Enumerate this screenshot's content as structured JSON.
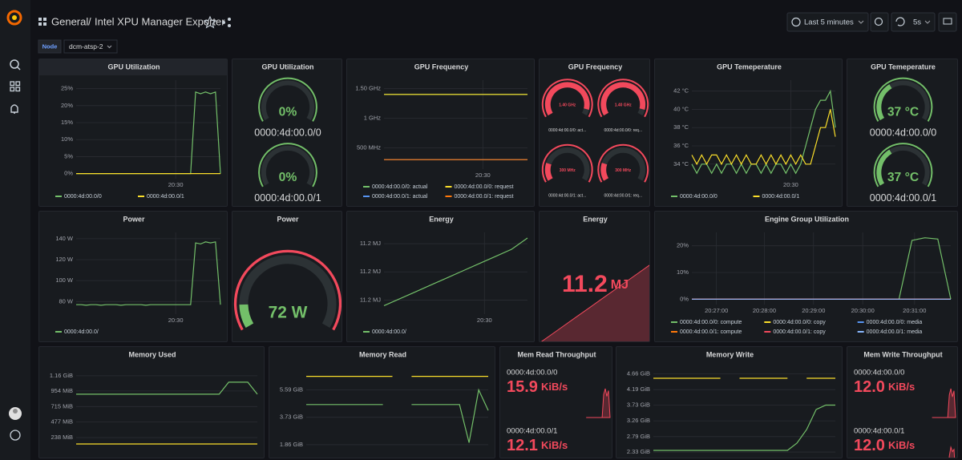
{
  "header": {
    "folder": "General",
    "dashboard": "Intel XPU Manager Exporter",
    "time_range": "Last 5 minutes",
    "refresh": "5s"
  },
  "variable": {
    "label": "Node",
    "value": "dcm-atsp-2"
  },
  "panels": [
    {
      "kind": "graph",
      "title": "GPU Utilization",
      "ylim": [
        -1.5,
        27.5
      ],
      "yticks": [
        {
          "value": 0,
          "label": "0%"
        },
        {
          "value": 5,
          "label": "5%"
        },
        {
          "value": 10,
          "label": "10%"
        },
        {
          "value": 15,
          "label": "15%"
        },
        {
          "value": 20,
          "label": "20%"
        },
        {
          "value": 25,
          "label": "25%"
        }
      ],
      "xticks": [
        {
          "value": 20,
          "label": "20:30"
        }
      ],
      "series": [
        {
          "name": "0000:4d:00.0/0",
          "color": "#73bf69",
          "values": [
            0,
            0,
            0,
            0,
            0,
            0,
            0,
            0,
            0,
            0,
            0,
            0,
            0,
            0,
            0,
            0,
            0,
            0,
            0,
            0,
            0,
            0,
            0,
            0,
            24,
            23.5,
            24,
            23.5,
            24,
            0
          ]
        },
        {
          "name": "0000:4d:00.0/1",
          "color": "#fade2a",
          "values": [
            0,
            0,
            0,
            0,
            0,
            0,
            0,
            0,
            0,
            0,
            0,
            0,
            0,
            0,
            0,
            0,
            0,
            0,
            0,
            0,
            0,
            0,
            0,
            0,
            0,
            0,
            0,
            0,
            0,
            0
          ]
        }
      ]
    },
    {
      "kind": "gauge",
      "title": "GPU Utilization",
      "min": 0,
      "max": 100,
      "color": "#73bf69",
      "threshold_color": "#73bf69",
      "items": [
        {
          "name": "0000:4d:00.0/0",
          "value": 0,
          "label": "0%"
        },
        {
          "name": "0000:4d:00.0/1",
          "value": 0,
          "label": "0%"
        }
      ]
    },
    {
      "kind": "graph",
      "title": "GPU Frequency",
      "ylim": [
        140,
        1640
      ],
      "yticks": [
        {
          "value": 500,
          "label": "500 MHz"
        },
        {
          "value": 1000,
          "label": "1 GHz"
        },
        {
          "value": 1500,
          "label": "1.50 GHz"
        }
      ],
      "xticks": [
        {
          "value": 6.2,
          "label": "20:30"
        }
      ],
      "series": [
        {
          "name": "0000:4d:00.0/0: actual",
          "color": "#73bf69",
          "values": [
            1400,
            1400,
            1400,
            1400,
            1400,
            1400,
            1400,
            1400,
            1400,
            1400
          ]
        },
        {
          "name": "0000:4d:00.0/0: request",
          "color": "#fade2a",
          "values": [
            1400,
            1400,
            1400,
            1400,
            1400,
            1400,
            1400,
            1400,
            1400,
            1400
          ]
        },
        {
          "name": "0000:4d:00.0/1: actual",
          "color": "#5794f2",
          "values": [
            300,
            300,
            300,
            300,
            300,
            300,
            300,
            300,
            300,
            300
          ]
        },
        {
          "name": "0000:4d:00.0/1: request",
          "color": "#ff780a",
          "values": [
            300,
            300,
            300,
            300,
            300,
            300,
            300,
            300,
            300,
            300
          ]
        }
      ]
    },
    {
      "kind": "gauge",
      "title": "GPU Frequency",
      "min": 0,
      "max": 1500,
      "color": "#f2495c",
      "threshold_color": "#f2495c",
      "items": [
        {
          "name": "0000:4d:00.0/0: act...",
          "value": 1400,
          "label": "1.40 GHz"
        },
        {
          "name": "0000:4d:00.0/0: req...",
          "value": 1400,
          "label": "1.40 GHz"
        },
        {
          "name": "0000:4d:00.0/1: act...",
          "value": 300,
          "label": "300 MHz"
        },
        {
          "name": "0000:4d:00.0/1: req...",
          "value": 300,
          "label": "300 MHz"
        }
      ]
    },
    {
      "kind": "graph",
      "title": "GPU Temeperature",
      "ylim": [
        32.4,
        43.2
      ],
      "yticks": [
        {
          "value": 34,
          "label": "34 °C"
        },
        {
          "value": 36,
          "label": "36 °C"
        },
        {
          "value": 38,
          "label": "38 °C"
        },
        {
          "value": 40,
          "label": "40 °C"
        },
        {
          "value": 42,
          "label": "42 °C"
        }
      ],
      "xticks": [
        {
          "value": 20,
          "label": "20:30"
        }
      ],
      "series": [
        {
          "name": "0000:4d:00.0/0",
          "color": "#73bf69",
          "values": [
            34,
            33,
            34,
            34,
            33,
            34,
            33,
            34,
            34,
            33,
            34,
            33,
            34,
            34,
            33,
            34,
            33,
            34,
            34,
            33,
            34,
            33,
            34,
            36,
            38,
            40,
            41,
            41,
            42,
            38
          ]
        },
        {
          "name": "0000:4d:00.0/1",
          "color": "#fade2a",
          "values": [
            35,
            34,
            35,
            34,
            35,
            35,
            34,
            35,
            34,
            35,
            34,
            35,
            34,
            34,
            35,
            34,
            35,
            34,
            35,
            34,
            35,
            34,
            35,
            34,
            34,
            36,
            38,
            38,
            40,
            37
          ]
        }
      ]
    },
    {
      "kind": "gauge",
      "title": "GPU Temeperature",
      "min": 0,
      "max": 100,
      "color": "#73bf69",
      "threshold_color": "#73bf69",
      "items": [
        {
          "name": "0000:4d:00.0/0",
          "value": 37,
          "label": "37 °C"
        },
        {
          "name": "0000:4d:00.0/1",
          "value": 37,
          "label": "37 °C"
        }
      ]
    },
    {
      "kind": "graph",
      "title": "Power",
      "ylim": [
        68,
        146
      ],
      "yticks": [
        {
          "value": 80,
          "label": "80 W"
        },
        {
          "value": 100,
          "label": "100 W"
        },
        {
          "value": 120,
          "label": "120 W"
        },
        {
          "value": 140,
          "label": "140 W"
        }
      ],
      "xticks": [
        {
          "value": 20,
          "label": "20:30"
        }
      ],
      "series": [
        {
          "name": "0000:4d:00.0/",
          "color": "#73bf69",
          "values": [
            77,
            77,
            76.5,
            77,
            77,
            76.5,
            77,
            77,
            77,
            76.5,
            77,
            77,
            77,
            77,
            76.5,
            77,
            77,
            77,
            77,
            77,
            77,
            77,
            77,
            77,
            136,
            135,
            137,
            136,
            137,
            77
          ]
        }
      ]
    },
    {
      "kind": "gauge",
      "title": "Power",
      "min": 60,
      "max": 160,
      "color": "#73bf69",
      "threshold_color": "#f2495c",
      "items": [
        {
          "value": 72,
          "label": "72 W"
        }
      ]
    },
    {
      "kind": "graph",
      "title": "Energy",
      "ylim": [
        11.185,
        11.214
      ],
      "yticks": [
        {
          "value": 11.19,
          "label": "11.2 MJ"
        },
        {
          "value": 11.2,
          "label": "11.2 MJ"
        },
        {
          "value": 11.21,
          "label": "11.2 MJ"
        }
      ],
      "xticks": [
        {
          "value": 6.3,
          "label": "20:30"
        }
      ],
      "series": [
        {
          "name": "0000:4d:00.0/",
          "color": "#73bf69",
          "values": [
            11.188,
            11.1905,
            11.193,
            11.1955,
            11.198,
            11.2005,
            11.203,
            11.2055,
            11.208,
            11.212
          ]
        }
      ]
    },
    {
      "kind": "stat",
      "title": "Energy",
      "value": 11.2,
      "unit": "MJ",
      "color": "#f2495c",
      "sparkline": [
        11.186,
        11.189,
        11.192,
        11.195,
        11.198,
        11.201,
        11.204,
        11.207,
        11.21,
        11.213
      ]
    },
    {
      "kind": "graph",
      "title": "Engine Group Utilization",
      "ylim": [
        -2,
        25
      ],
      "yticks": [
        {
          "value": 0,
          "label": "0%"
        },
        {
          "value": 10,
          "label": "10%"
        },
        {
          "value": 20,
          "label": "20%"
        }
      ],
      "xticks": [
        {
          "value": 1.9,
          "label": "20:27:00"
        },
        {
          "value": 5.6,
          "label": "20:28:00"
        },
        {
          "value": 9.4,
          "label": "20:29:00"
        },
        {
          "value": 13.2,
          "label": "20:30:00"
        },
        {
          "value": 17.2,
          "label": "20:31:00"
        }
      ],
      "series": [
        {
          "name": "0000:4d:00.0/0: compute",
          "color": "#73bf69",
          "values": [
            0,
            0,
            0,
            0,
            0,
            0,
            0,
            0,
            0,
            0,
            0,
            0,
            0,
            0,
            0,
            0,
            0,
            22,
            23,
            22.5,
            0
          ]
        },
        {
          "name": "0000:4d:00.0/0: copy",
          "color": "#fade2a",
          "values": [
            0,
            0,
            0,
            0,
            0,
            0,
            0,
            0,
            0,
            0,
            0,
            0,
            0,
            0,
            0,
            0,
            0,
            0,
            0,
            0,
            0
          ]
        },
        {
          "name": "0000:4d:00.0/0: media",
          "color": "#5794f2",
          "values": [
            0,
            0,
            0,
            0,
            0,
            0,
            0,
            0,
            0,
            0,
            0,
            0,
            0,
            0,
            0,
            0,
            0,
            0,
            0,
            0,
            0
          ]
        },
        {
          "name": "0000:4d:00.0/1: compute",
          "color": "#ff780a",
          "values": [
            0,
            0,
            0,
            0,
            0,
            0,
            0,
            0,
            0,
            0,
            0,
            0,
            0,
            0,
            0,
            0,
            0,
            0,
            0,
            0,
            0
          ]
        },
        {
          "name": "0000:4d:00.0/1: copy",
          "color": "#f2495c",
          "values": [
            0,
            0,
            0,
            0,
            0,
            0,
            0,
            0,
            0,
            0,
            0,
            0,
            0,
            0,
            0,
            0,
            0,
            0,
            0,
            0,
            0
          ]
        },
        {
          "name": "0000:4d:00.0/1: media",
          "color": "#8ab8ff",
          "values": [
            0,
            0,
            0,
            0,
            0,
            0,
            0,
            0,
            0,
            0,
            0,
            0,
            0,
            0,
            0,
            0,
            0,
            0,
            0,
            0,
            0
          ]
        }
      ]
    },
    {
      "kind": "graph",
      "title": "Memory Used",
      "ylim": [
        -20,
        1310
      ],
      "yticks": [
        {
          "value": 238,
          "label": "238 MiB"
        },
        {
          "value": 477,
          "label": "477 MiB"
        },
        {
          "value": 715,
          "label": "715 MiB"
        },
        {
          "value": 954,
          "label": "954 MiB"
        },
        {
          "value": 1188,
          "label": "1.16 GiB"
        }
      ],
      "series": [
        {
          "color": "#73bf69",
          "values": [
            905,
            905,
            905,
            905,
            905,
            905,
            905,
            905,
            905,
            905,
            905,
            905,
            905,
            905,
            905,
            905,
            1090,
            1090,
            1090,
            905
          ]
        },
        {
          "color": "#fade2a",
          "values": [
            140,
            140,
            140,
            140,
            140,
            140,
            140,
            140,
            140,
            140,
            140,
            140,
            140,
            140,
            140,
            140,
            140,
            140,
            140,
            140
          ]
        }
      ]
    },
    {
      "kind": "graph",
      "title": "Memory Read",
      "ylim": [
        1.2,
        7.1
      ],
      "yticks": [
        {
          "value": 1.86,
          "label": "1.86 GiB"
        },
        {
          "value": 3.73,
          "label": "3.73 GiB"
        },
        {
          "value": 5.59,
          "label": "5.59 GiB"
        }
      ],
      "series": [
        {
          "color": "#fade2a",
          "values": [
            6.52,
            6.52,
            6.52,
            6.52,
            6.52,
            6.52,
            6.52,
            6.52,
            6.52,
            6.52,
            null,
            6.52,
            6.52,
            6.52,
            6.52,
            6.52,
            6.52,
            6.52,
            6.52,
            6.52
          ]
        },
        {
          "color": "#73bf69",
          "values": [
            4.6,
            4.6,
            4.6,
            4.6,
            4.6,
            4.6,
            4.6,
            4.6,
            4.6,
            null,
            null,
            4.6,
            4.6,
            4.6,
            4.6,
            4.6,
            4.6,
            2.0,
            5.6,
            4.2
          ]
        }
      ]
    },
    {
      "kind": "throughput",
      "title": "Mem Read Throughput",
      "color": "#f2495c",
      "items": [
        {
          "name": "0000:4d:00.0/0",
          "value": 15.9,
          "unit": "KiB/s",
          "sparkline": [
            1,
            1,
            1,
            1,
            1,
            1,
            1,
            1,
            1,
            1,
            1,
            13,
            16,
            12,
            15,
            1
          ]
        },
        {
          "name": "0000:4d:00.0/1",
          "value": 12.1,
          "unit": "KiB/s"
        }
      ]
    },
    {
      "kind": "graph",
      "title": "Memory Write",
      "ylim": [
        2.26,
        4.84
      ],
      "yticks": [
        {
          "value": 2.33,
          "label": "2.33 GiB"
        },
        {
          "value": 2.79,
          "label": "2.79 GiB"
        },
        {
          "value": 3.26,
          "label": "3.26 GiB"
        },
        {
          "value": 3.73,
          "label": "3.73 GiB"
        },
        {
          "value": 4.19,
          "label": "4.19 GiB"
        },
        {
          "value": 4.66,
          "label": "4.66 GiB"
        }
      ],
      "series": [
        {
          "color": "#fade2a",
          "values": [
            4.53,
            4.53,
            4.53,
            4.53,
            4.53,
            4.53,
            4.53,
            4.53,
            null,
            4.53,
            4.53,
            4.53,
            4.53,
            4.53,
            4.53,
            null,
            4.53,
            4.53,
            4.53,
            4.53
          ]
        },
        {
          "color": "#73bf69",
          "values": [
            2.38,
            2.38,
            2.38,
            2.38,
            2.38,
            2.38,
            2.38,
            2.38,
            2.38,
            2.38,
            2.38,
            2.38,
            2.38,
            2.38,
            2.38,
            2.6,
            3.0,
            3.6,
            3.73,
            3.73
          ]
        }
      ]
    },
    {
      "kind": "throughput",
      "title": "Mem Write Throughput",
      "color": "#f2495c",
      "items": [
        {
          "name": "0000:4d:00.0/0",
          "value": 12,
          "value_label": "12.0",
          "unit": "KiB/s",
          "sparkline": [
            1,
            1,
            1,
            1,
            1,
            1,
            1,
            1,
            1,
            1,
            1,
            12,
            15,
            11,
            14,
            1
          ]
        },
        {
          "name": "0000:4d:00.0/1",
          "value": 12,
          "value_label": "12.0",
          "unit": "KiB/s",
          "sparkline": [
            1,
            1,
            1,
            1,
            1,
            1,
            1,
            1,
            1,
            1,
            1,
            10,
            14,
            12,
            13,
            1
          ]
        }
      ]
    }
  ]
}
